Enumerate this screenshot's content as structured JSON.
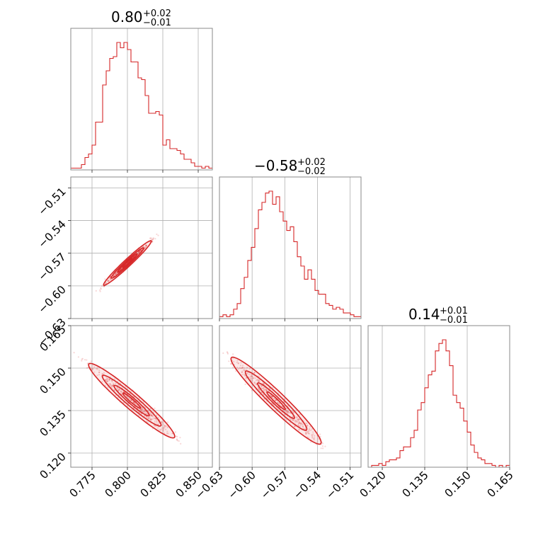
{
  "colors": {
    "accent": "#d62728",
    "grid": "#b0b0b0",
    "frame": "#888888"
  },
  "chart_data": {
    "type": "corner",
    "params": [
      {
        "title_value": "0.80",
        "title_plus": "+0.02",
        "title_minus": "−0.01",
        "range": [
          0.76,
          0.86
        ],
        "ticks": [
          0.775,
          0.8,
          0.825,
          0.85
        ],
        "tick_labels": [
          "0.775",
          "0.800",
          "0.825",
          "0.850"
        ]
      },
      {
        "title_value": "−0.58",
        "title_plus": "+0.02",
        "title_minus": "−0.02",
        "range": [
          -0.63,
          -0.5
        ],
        "ticks": [
          -0.63,
          -0.6,
          -0.57,
          -0.54,
          -0.51
        ],
        "tick_labels": [
          "−0.63",
          "−0.60",
          "−0.57",
          "−0.54",
          "−0.51"
        ]
      },
      {
        "title_value": "0.14",
        "title_plus": "+0.01",
        "title_minus": "−0.01",
        "range": [
          0.115,
          0.165
        ],
        "ticks": [
          0.12,
          0.135,
          0.15,
          0.165
        ],
        "tick_labels": [
          "0.120",
          "0.135",
          "0.150",
          "0.165"
        ]
      }
    ],
    "y_ticks": [
      {
        "ticks": [
          -0.6,
          -0.57,
          -0.54,
          -0.51
        ],
        "tick_labels": [
          "−0.60",
          "−0.57",
          "−0.54",
          "−0.51"
        ],
        "bottom_label": "−0.63"
      },
      {
        "ticks": [
          0.12,
          0.135,
          0.15,
          0.165
        ],
        "tick_labels": [
          "0.120",
          "0.135",
          "0.150",
          "0.165"
        ]
      }
    ],
    "histograms": [
      {
        "counts": [
          1,
          1,
          1,
          3,
          7,
          9,
          14,
          27,
          27,
          48,
          56,
          63,
          64,
          72,
          69,
          72,
          68,
          61,
          61,
          52,
          51,
          42,
          32,
          32,
          33,
          31,
          14,
          17,
          12,
          12,
          11,
          9,
          6,
          6,
          4,
          2,
          2,
          1,
          2,
          1
        ]
      },
      {
        "counts": [
          1,
          2,
          1,
          2,
          5,
          8,
          16,
          22,
          31,
          38,
          48,
          58,
          62,
          67,
          68,
          61,
          65,
          57,
          52,
          47,
          49,
          41,
          33,
          28,
          21,
          26,
          21,
          15,
          13,
          13,
          8,
          7,
          5,
          6,
          5,
          3,
          3,
          2,
          1,
          1
        ]
      },
      {
        "counts": [
          0,
          1,
          1,
          2,
          1,
          3,
          4,
          4,
          5,
          9,
          11,
          11,
          16,
          20,
          31,
          35,
          43,
          50,
          52,
          63,
          67,
          69,
          63,
          55,
          39,
          35,
          32,
          25,
          19,
          12,
          8,
          5,
          4,
          2,
          2,
          1,
          0,
          1,
          0,
          1
        ]
      }
    ],
    "correlations": [
      {
        "x_param": 0,
        "y_param": 1,
        "x_center": 0.8,
        "y_center": -0.579,
        "slope": 1.22,
        "sigma_along": 0.012,
        "sigma_across": 0.001
      },
      {
        "x_param": 0,
        "y_param": 2,
        "x_center": 0.803,
        "y_center": 0.1385,
        "slope": -0.42,
        "sigma_along": 0.015,
        "sigma_across": 0.0012
      },
      {
        "x_param": 1,
        "y_param": 2,
        "x_center": -0.578,
        "y_center": 0.1385,
        "slope": -0.36,
        "sigma_along": 0.02,
        "sigma_across": 0.0014
      }
    ]
  }
}
